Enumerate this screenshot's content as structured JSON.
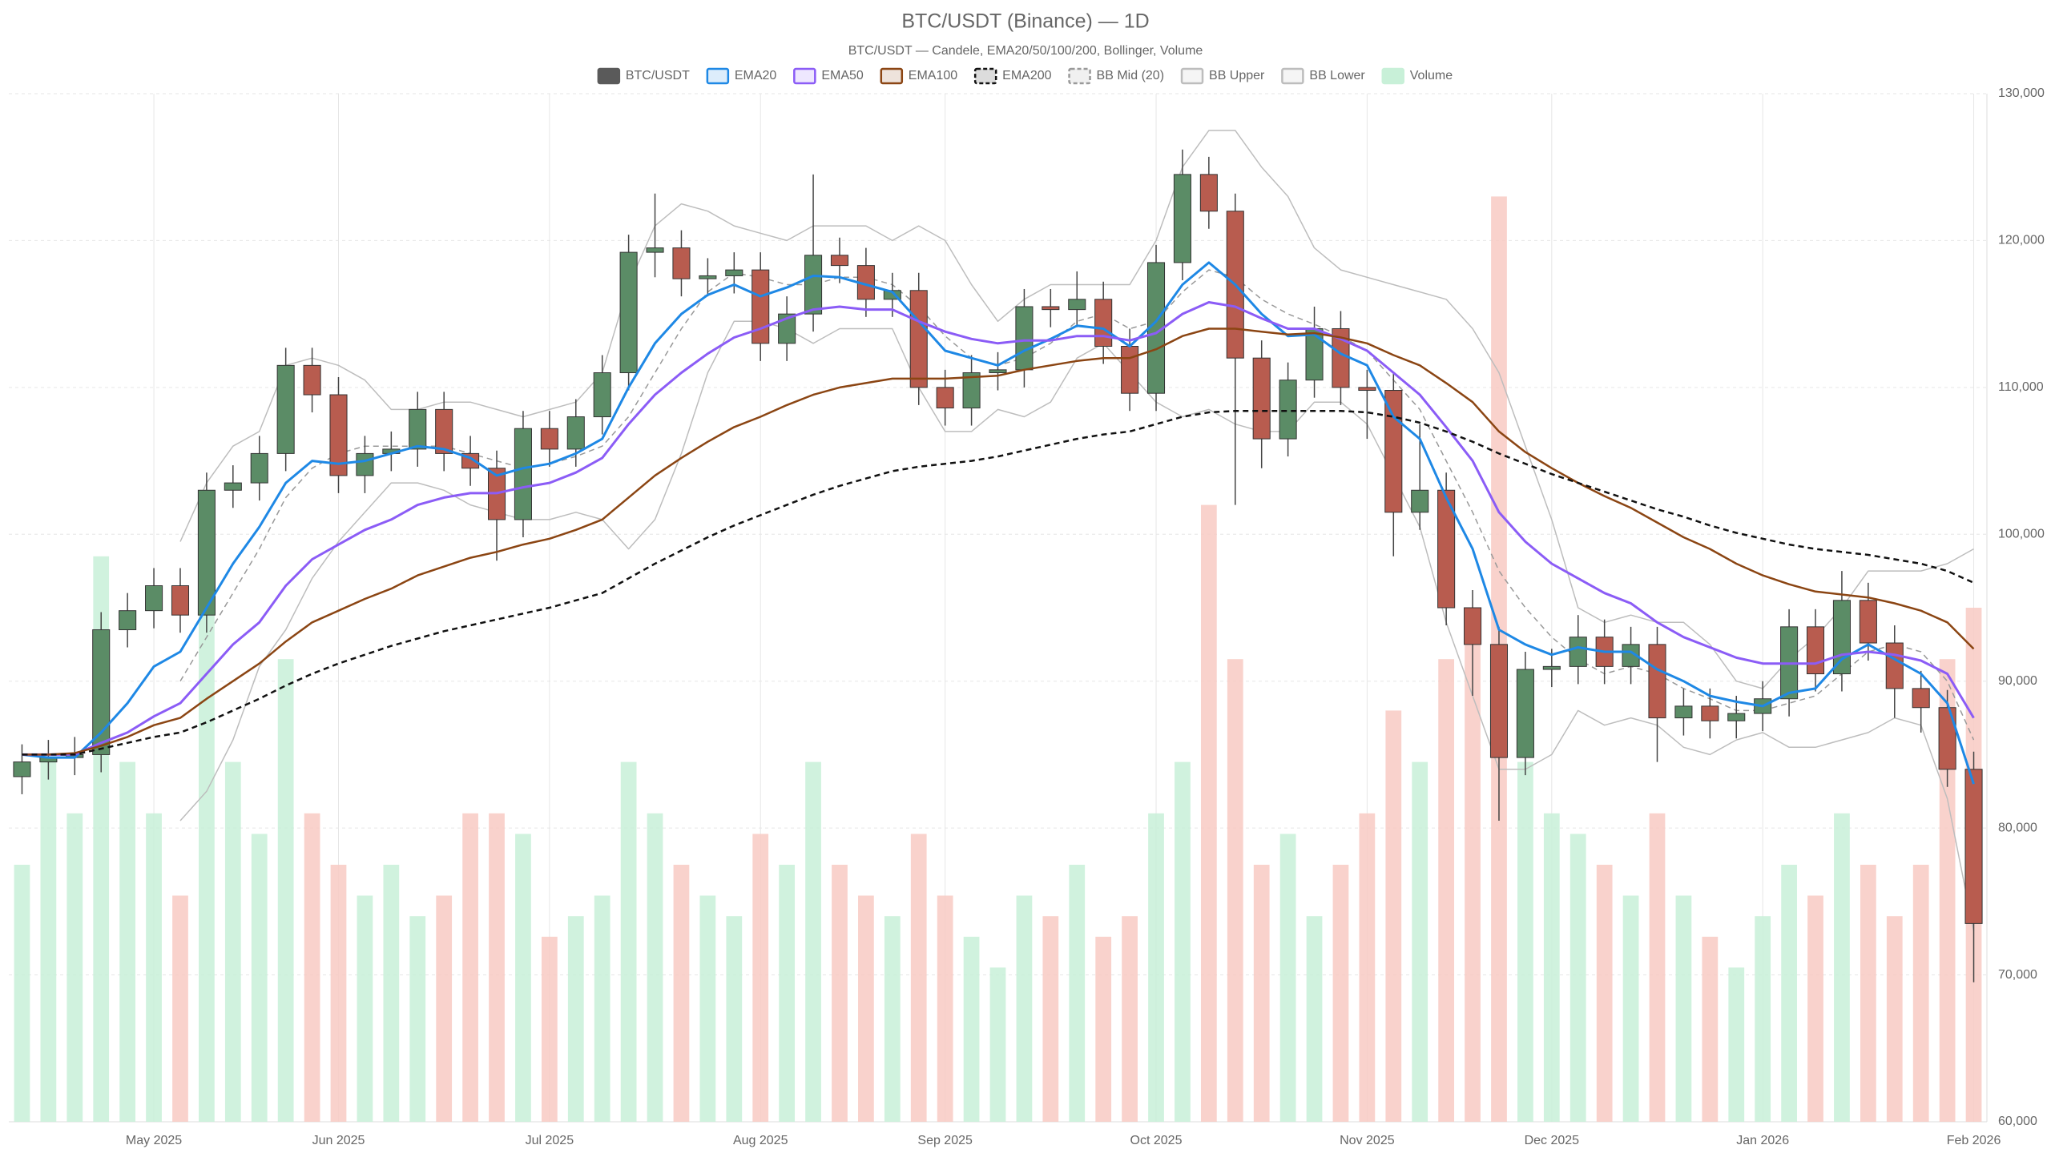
{
  "chart_data": {
    "type": "candlestick",
    "title": "BTC/USDT (Binance) — 1D",
    "subtitle": "BTC/USDT — Candele, EMA20/50/100/200, Bollinger, Volume",
    "categories": [
      null,
      null,
      null,
      null,
      null,
      "May 2025",
      null,
      null,
      null,
      null,
      null,
      null,
      "Jun 2025",
      null,
      null,
      null,
      null,
      null,
      null,
      null,
      "Jul 2025",
      null,
      null,
      null,
      null,
      null,
      null,
      null,
      "Aug 2025",
      null,
      null,
      null,
      null,
      null,
      null,
      "Sep 2025",
      null,
      null,
      null,
      null,
      null,
      null,
      null,
      "Oct 2025",
      null,
      null,
      null,
      null,
      null,
      null,
      null,
      "Nov 2025",
      null,
      null,
      null,
      null,
      null,
      null,
      "Dec 2025",
      null,
      null,
      null,
      null,
      null,
      null,
      null,
      "Jan 2026",
      null,
      null,
      null,
      null,
      null,
      null,
      null,
      "Feb 2026"
    ],
    "ylim": [
      60000,
      130000
    ],
    "yticks": [
      {
        "value": 60000,
        "label": "60,000"
      },
      {
        "value": 70000,
        "label": "70,000"
      },
      {
        "value": 80000,
        "label": "80,000"
      },
      {
        "value": 90000,
        "label": "90,000"
      },
      {
        "value": 100000,
        "label": "100,000"
      },
      {
        "value": 110000,
        "label": "110,000"
      },
      {
        "value": 120000,
        "label": "120,000"
      },
      {
        "value": 130000,
        "label": "130,000"
      }
    ],
    "grid": true,
    "volume_lim": [
      0,
      100
    ],
    "series": [
      {
        "name": "BTC/USDT",
        "type": "candlestick",
        "color": "#5a5a5a",
        "up_color": "#5b8c66",
        "down_color": "#b85c4f",
        "open": [
          83500,
          84500,
          84800,
          85000,
          93500,
          94800,
          96500,
          94500,
          103000,
          103500,
          105500,
          111500,
          109500,
          104000,
          105500,
          105800,
          108500,
          105500,
          104500,
          101000,
          107200,
          105800,
          108000,
          111000,
          119200,
          119500,
          117400,
          117600,
          118000,
          113000,
          115000,
          119000,
          118300,
          116000,
          116600,
          110000,
          108600,
          111000,
          111200,
          115500,
          115300,
          116000,
          112800,
          109600,
          118500,
          124500,
          122000,
          112000,
          106500,
          110500,
          114000,
          110000,
          109800,
          101500,
          103000,
          95000,
          92500,
          84800,
          90800,
          91000,
          93000,
          91000,
          92500,
          87500,
          88300,
          87300,
          87800,
          88800,
          93700,
          90500,
          95500,
          92600,
          89500,
          88200,
          84000
        ],
        "high": [
          85700,
          86000,
          86200,
          94700,
          96000,
          97700,
          97700,
          104200,
          104700,
          106700,
          112700,
          112700,
          110700,
          106700,
          107000,
          109700,
          109700,
          106700,
          105700,
          108400,
          108400,
          109200,
          112200,
          120400,
          123200,
          120700,
          118800,
          119200,
          119200,
          116200,
          124500,
          120200,
          119500,
          117800,
          117800,
          111200,
          112200,
          112400,
          116700,
          116700,
          117900,
          117200,
          114000,
          119700,
          126200,
          125700,
          123200,
          113200,
          111700,
          115500,
          115200,
          111200,
          111000,
          107500,
          104200,
          96200,
          93700,
          92000,
          92200,
          94500,
          94200,
          93700,
          93700,
          89500,
          89500,
          89000,
          90000,
          94900,
          94900,
          97500,
          96700,
          93800,
          90700,
          89400,
          85200
        ],
        "low": [
          82300,
          83300,
          83600,
          83800,
          92300,
          93600,
          93300,
          93300,
          101800,
          102300,
          104300,
          108300,
          102800,
          102800,
          104300,
          104600,
          104300,
          103300,
          98200,
          99800,
          104600,
          104600,
          106800,
          109800,
          117500,
          116200,
          116200,
          116400,
          111800,
          111800,
          113800,
          117100,
          114800,
          114800,
          108800,
          107400,
          107400,
          109800,
          110000,
          114100,
          114100,
          111600,
          108400,
          108400,
          117300,
          120800,
          102000,
          104500,
          105300,
          109300,
          108800,
          106500,
          98500,
          100300,
          93800,
          89000,
          80500,
          83600,
          89600,
          89800,
          89800,
          89800,
          84500,
          86300,
          86100,
          86100,
          86600,
          87600,
          89300,
          89300,
          91400,
          87500,
          86500,
          82800,
          69500
        ],
        "close": [
          84500,
          84800,
          85000,
          93500,
          94800,
          96500,
          94500,
          103000,
          103500,
          105500,
          111500,
          109500,
          104000,
          105500,
          105800,
          108500,
          105500,
          104500,
          101000,
          107200,
          105800,
          108000,
          111000,
          119200,
          119500,
          117400,
          117600,
          118000,
          113000,
          115000,
          119000,
          118300,
          116000,
          116600,
          110000,
          108600,
          111000,
          111200,
          115500,
          115300,
          116000,
          112800,
          109600,
          118500,
          124500,
          122000,
          112000,
          106500,
          110500,
          114000,
          110000,
          109800,
          101500,
          103000,
          95000,
          92500,
          84800,
          90800,
          91000,
          93000,
          91000,
          92500,
          87500,
          88300,
          87300,
          87800,
          88800,
          93700,
          90500,
          95500,
          92600,
          89500,
          88200,
          84000,
          73500
        ]
      },
      {
        "name": "EMA20",
        "type": "line",
        "color": "#1e88e5",
        "width": 3,
        "values": [
          85000,
          84800,
          84800,
          86500,
          88500,
          91000,
          92000,
          95000,
          98000,
          100500,
          103500,
          105000,
          104800,
          105000,
          105500,
          106000,
          105800,
          105200,
          104000,
          104500,
          104800,
          105500,
          106500,
          110000,
          113000,
          115000,
          116300,
          117000,
          116200,
          116800,
          117600,
          117500,
          117000,
          116500,
          114500,
          112500,
          112000,
          111500,
          112500,
          113300,
          114200,
          114000,
          112800,
          114500,
          117000,
          118500,
          117000,
          115000,
          113500,
          113600,
          112300,
          111500,
          108000,
          106500,
          102500,
          99000,
          93500,
          92500,
          91800,
          92300,
          92000,
          92000,
          90800,
          90000,
          89000,
          88600,
          88300,
          89200,
          89500,
          91500,
          92500,
          91500,
          90500,
          88500,
          83000
        ]
      },
      {
        "name": "EMA50",
        "type": "line",
        "color": "#8b5cf6",
        "width": 3,
        "values": [
          85000,
          85000,
          85000,
          85800,
          86500,
          87600,
          88500,
          90500,
          92500,
          94000,
          96500,
          98300,
          99300,
          100300,
          101000,
          102000,
          102500,
          102800,
          102800,
          103200,
          103500,
          104200,
          105200,
          107500,
          109500,
          111000,
          112300,
          113400,
          114000,
          114700,
          115300,
          115500,
          115300,
          115300,
          114500,
          113800,
          113300,
          113000,
          113200,
          113200,
          113500,
          113500,
          113200,
          113700,
          115000,
          115800,
          115500,
          114700,
          114000,
          114000,
          113300,
          112500,
          111000,
          109500,
          107300,
          105000,
          101500,
          99500,
          98000,
          97000,
          96000,
          95300,
          94000,
          93000,
          92300,
          91600,
          91200,
          91200,
          91200,
          91800,
          92000,
          91800,
          91400,
          90500,
          87500
        ]
      },
      {
        "name": "EMA100",
        "type": "line",
        "color": "#8b4513",
        "width": 2.5,
        "values": [
          85000,
          85000,
          85100,
          85600,
          86200,
          87000,
          87500,
          88800,
          90000,
          91200,
          92700,
          94000,
          94800,
          95600,
          96300,
          97200,
          97800,
          98400,
          98800,
          99300,
          99700,
          100300,
          101000,
          102500,
          104000,
          105200,
          106300,
          107300,
          108000,
          108800,
          109500,
          110000,
          110300,
          110600,
          110600,
          110600,
          110700,
          110800,
          111200,
          111500,
          111800,
          112000,
          112000,
          112600,
          113500,
          114000,
          114000,
          113800,
          113600,
          113700,
          113400,
          113000,
          112200,
          111500,
          110300,
          109000,
          107000,
          105600,
          104500,
          103500,
          102600,
          101800,
          100800,
          99800,
          99000,
          98000,
          97200,
          96600,
          96100,
          95900,
          95700,
          95300,
          94800,
          94000,
          92200
        ]
      },
      {
        "name": "EMA200",
        "type": "line",
        "color": "#111111",
        "width": 2.5,
        "dash": true,
        "values": [
          85000,
          85000,
          85000,
          85400,
          85800,
          86200,
          86500,
          87200,
          88000,
          88800,
          89700,
          90500,
          91200,
          91800,
          92400,
          92900,
          93400,
          93800,
          94200,
          94600,
          95000,
          95500,
          96000,
          97000,
          98000,
          98900,
          99800,
          100600,
          101300,
          102000,
          102700,
          103300,
          103800,
          104300,
          104600,
          104800,
          105000,
          105300,
          105700,
          106100,
          106500,
          106800,
          107000,
          107500,
          108000,
          108300,
          108400,
          108400,
          108400,
          108400,
          108400,
          108300,
          108000,
          107600,
          107000,
          106300,
          105500,
          104800,
          104100,
          103500,
          102900,
          102300,
          101700,
          101200,
          100600,
          100100,
          99700,
          99300,
          99000,
          98800,
          98600,
          98300,
          98000,
          97500,
          96700
        ]
      },
      {
        "name": "BB Mid (20)",
        "type": "line",
        "color": "#999999",
        "width": 1.5,
        "dash": true,
        "values": [
          null,
          null,
          null,
          null,
          null,
          null,
          90000,
          93000,
          96000,
          99000,
          102500,
          104500,
          105500,
          106000,
          106000,
          106000,
          106000,
          105500,
          105000,
          104500,
          104800,
          105300,
          106000,
          108000,
          111000,
          114000,
          116500,
          117800,
          117500,
          117000,
          117000,
          117500,
          117500,
          117000,
          115500,
          113500,
          112000,
          111500,
          112000,
          113000,
          114500,
          115000,
          114000,
          114500,
          116500,
          118000,
          117500,
          116000,
          115000,
          114300,
          113500,
          112500,
          110500,
          108500,
          105000,
          101500,
          97500,
          95000,
          93000,
          91500,
          90500,
          91000,
          90500,
          89500,
          88800,
          88000,
          88000,
          88500,
          89000,
          90500,
          92000,
          92500,
          92000,
          90000,
          86000
        ]
      },
      {
        "name": "BB Upper",
        "type": "line",
        "color": "#bdbdbd",
        "width": 1.5,
        "values": [
          null,
          null,
          null,
          null,
          null,
          null,
          99500,
          103500,
          106000,
          107000,
          111500,
          112000,
          111500,
          110500,
          108500,
          108500,
          109000,
          109000,
          108500,
          108000,
          108500,
          109000,
          111000,
          117000,
          121000,
          122500,
          122000,
          121000,
          120500,
          120000,
          121000,
          121000,
          121000,
          120000,
          121000,
          120000,
          117000,
          114500,
          116000,
          117000,
          117000,
          117000,
          117000,
          120000,
          125000,
          127500,
          127500,
          125000,
          123000,
          119500,
          118000,
          117500,
          117000,
          116500,
          116000,
          114000,
          111000,
          106000,
          101000,
          95000,
          94000,
          94500,
          94000,
          94000,
          92500,
          90000,
          89500,
          91500,
          93000,
          95000,
          97500,
          97500,
          97500,
          98000,
          99000
        ]
      },
      {
        "name": "BB Lower",
        "type": "line",
        "color": "#bdbdbd",
        "width": 1.5,
        "values": [
          null,
          null,
          null,
          null,
          null,
          null,
          80500,
          82500,
          86000,
          91000,
          93500,
          97000,
          99500,
          101500,
          103500,
          103500,
          103000,
          102000,
          101500,
          101000,
          101000,
          101500,
          101000,
          99000,
          101000,
          105500,
          111000,
          114500,
          114500,
          114000,
          113000,
          114000,
          114000,
          114000,
          110000,
          107000,
          107000,
          108500,
          108000,
          109000,
          112000,
          113000,
          111000,
          109000,
          108000,
          108500,
          107500,
          107000,
          107000,
          109000,
          109000,
          107500,
          104000,
          100500,
          94000,
          89000,
          84000,
          84000,
          85000,
          88000,
          87000,
          87500,
          87000,
          85500,
          85000,
          86000,
          86500,
          85500,
          85500,
          86000,
          86500,
          87500,
          87000,
          82000,
          73000
        ]
      },
      {
        "name": "Volume",
        "type": "volume",
        "color": "#c8f0d8",
        "up_color": "#c8f0d8",
        "down_color": "#f8cac3",
        "values": [
          25,
          35,
          30,
          55,
          35,
          30,
          22,
          50,
          35,
          28,
          45,
          30,
          25,
          22,
          25,
          20,
          22,
          30,
          30,
          28,
          18,
          20,
          22,
          35,
          30,
          25,
          22,
          20,
          28,
          25,
          35,
          25,
          22,
          20,
          28,
          22,
          18,
          15,
          22,
          20,
          25,
          18,
          20,
          30,
          35,
          60,
          45,
          25,
          28,
          20,
          25,
          30,
          40,
          35,
          45,
          50,
          90,
          35,
          30,
          28,
          25,
          22,
          30,
          22,
          18,
          15,
          20,
          25,
          22,
          30,
          25,
          20,
          25,
          45,
          50
        ]
      }
    ]
  }
}
